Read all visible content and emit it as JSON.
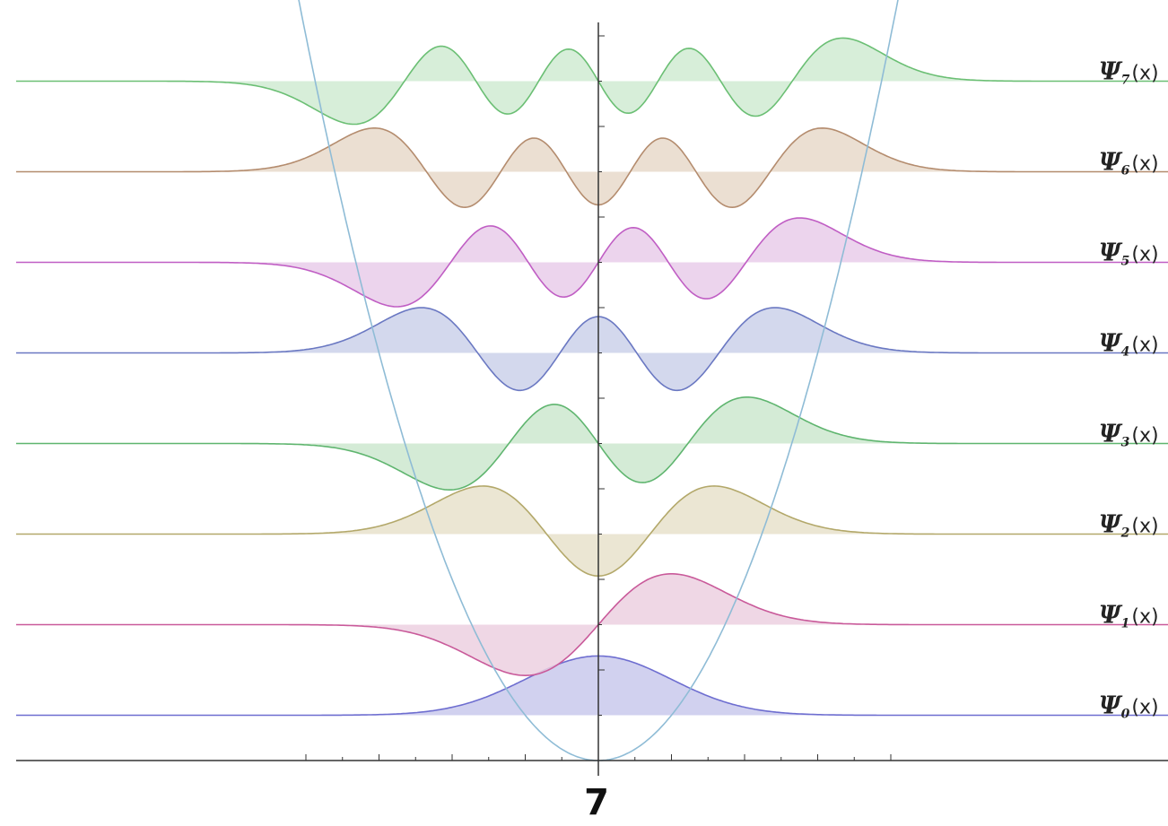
{
  "chart_data": {
    "type": "area",
    "title": "",
    "xlabel": "",
    "ylabel": "",
    "xlim": [
      -4,
      3.9
    ],
    "grid": false,
    "legend": "none",
    "potential": {
      "name": "V(x)",
      "function": "x^2/2",
      "color": "#8fbcd6"
    },
    "series": [
      {
        "name": "Ψ₀(x)",
        "n": 0,
        "energy": 0.5,
        "color": "#6e6ed0",
        "fill": "#c9c9ec"
      },
      {
        "name": "Ψ₁(x)",
        "n": 1,
        "energy": 1.5,
        "color": "#c95a9a",
        "fill": "#ecd0e0"
      },
      {
        "name": "Ψ₂(x)",
        "n": 2,
        "energy": 2.5,
        "color": "#b3a86a",
        "fill": "#e8e2cb"
      },
      {
        "name": "Ψ₃(x)",
        "n": 3,
        "energy": 3.5,
        "color": "#5fb56f",
        "fill": "#cde8cf"
      },
      {
        "name": "Ψ₄(x)",
        "n": 4,
        "energy": 4.5,
        "color": "#6a78c2",
        "fill": "#cbd1ea"
      },
      {
        "name": "Ψ₅(x)",
        "n": 5,
        "energy": 5.5,
        "color": "#c05ec4",
        "fill": "#e9cdea"
      },
      {
        "name": "Ψ₆(x)",
        "n": 6,
        "energy": 6.5,
        "color": "#b48c6e",
        "fill": "#e8d9ca"
      },
      {
        "name": "Ψ₇(x)",
        "n": 7,
        "energy": 7.5,
        "color": "#6bbf74",
        "fill": "#d0ebd2"
      }
    ]
  },
  "labels": {
    "psi_symbol": "Ψ",
    "argument": "(x)",
    "subscripts": [
      "0",
      "1",
      "2",
      "3",
      "4",
      "5",
      "6",
      "7"
    ]
  },
  "page_number": "7"
}
